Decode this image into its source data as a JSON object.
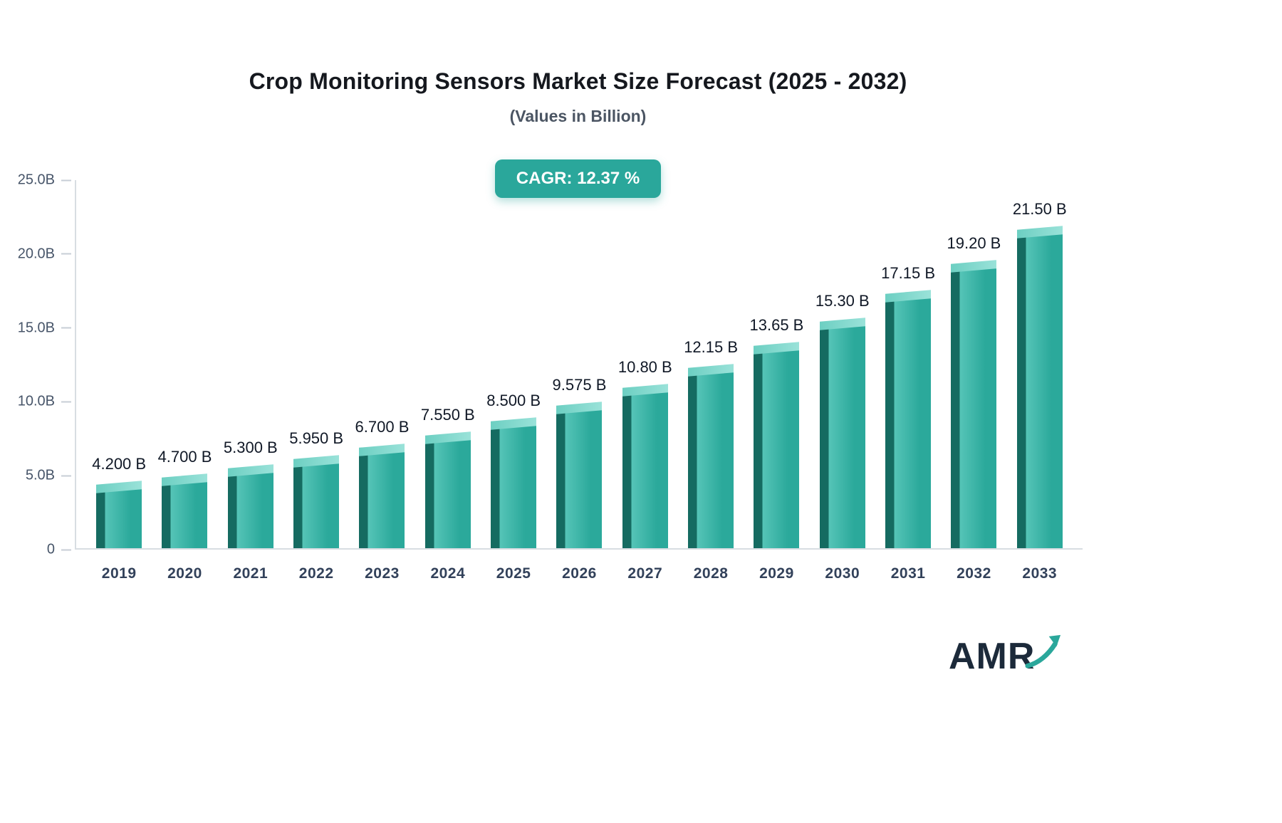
{
  "header": {
    "title": "Crop Monitoring Sensors Market Size Forecast (2025 - 2032)",
    "subtitle": "(Values in Billion)",
    "cagr_badge": "CAGR: 12.37 %"
  },
  "chart_data": {
    "type": "bar",
    "title": "Crop Monitoring Sensors Market Size Forecast (2025 - 2032)",
    "subtitle": "(Values in Billion)",
    "categories": [
      "2019",
      "2020",
      "2021",
      "2022",
      "2023",
      "2024",
      "2025",
      "2026",
      "2027",
      "2028",
      "2029",
      "2030",
      "2031",
      "2032",
      "2033"
    ],
    "values": [
      4.2,
      4.7,
      5.3,
      5.95,
      6.7,
      7.55,
      8.5,
      9.575,
      10.8,
      12.15,
      13.65,
      15.3,
      17.15,
      19.2,
      21.5
    ],
    "bar_labels": [
      "4.200 B",
      "4.700 B",
      "5.300 B",
      "5.950 B",
      "6.700 B",
      "7.550 B",
      "8.500 B",
      "9.575 B",
      "10.80 B",
      "12.15 B",
      "13.65 B",
      "15.30 B",
      "17.15 B",
      "19.20 B",
      "21.50 B"
    ],
    "y_ticks_bottom_up": [
      "0",
      "5.0B",
      "10.0B",
      "15.0B",
      "20.0B",
      "25.0B"
    ],
    "ylim": [
      0,
      25
    ],
    "xlabel": "",
    "ylabel": "",
    "grid": false,
    "legend": false,
    "cagr": "CAGR: 12.37 %",
    "colors": {
      "bar_main": "#2BA99B",
      "bar_main_light": "#55C4B7",
      "bar_side_dark": "#156B61",
      "bar_top": "#9AE2D9",
      "badge_bg": "#2AA79B",
      "axis_line": "#D8DDE2",
      "tick_text": "#475569",
      "label_text": "#101826"
    }
  },
  "logo": {
    "text": "AMR"
  }
}
